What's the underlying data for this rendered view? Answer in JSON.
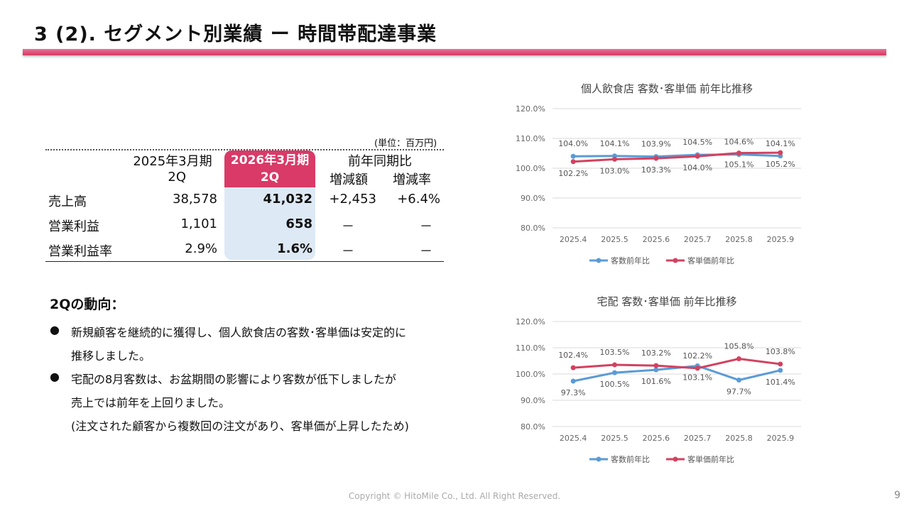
{
  "header": {
    "title": "3 (2).  セグメント別業績  ー  時間帯配達事業"
  },
  "table": {
    "unit": "(単位：百万円)",
    "col1_line1": "2025年3月期",
    "col1_line2": "2Q",
    "col2_line1": "2026年3月期",
    "col2_line2": "2Q",
    "col3_head": "前年同期比",
    "col3_sub": "増減額",
    "col4_sub": "増減率",
    "rows": [
      {
        "label": "売上高",
        "prev": "38,578",
        "curr": "41,032",
        "diff": "+2,453",
        "rate": "+6.4%"
      },
      {
        "label": "営業利益",
        "prev": "1,101",
        "curr": "658",
        "diff": "－",
        "rate": "－"
      },
      {
        "label": "営業利益率",
        "prev": "2.9%",
        "curr": "1.6%",
        "diff": "－",
        "rate": "－"
      }
    ]
  },
  "trend": {
    "title": "2Qの動向：",
    "bullet": "●",
    "b1_l1": "新規顧客を継続的に獲得し、個人飲食店の客数･客単価は安定的に",
    "b1_l2": "推移しました。",
    "b2_l1": "宅配の8月客数は、お盆期間の影響により客数が低下しましたが",
    "b2_l2": "売上では前年を上回りました。",
    "b2_l3": "(注文された顧客から複数回の注文があり、客単価が上昇したため)"
  },
  "footer": {
    "copyright": "Copyright © HitoMile Co., Ltd. All Right Reserved.",
    "page": "9"
  },
  "chart_data": [
    {
      "type": "line",
      "title": "個人飲食店  客数･客単価  前年比推移",
      "categories": [
        "2025.4",
        "2025.5",
        "2025.6",
        "2025.7",
        "2025.8",
        "2025.9"
      ],
      "ylim": [
        80,
        120
      ],
      "yticks": [
        "120.0%",
        "110.0%",
        "100.0%",
        "90.0%",
        "80.0%"
      ],
      "series": [
        {
          "name": "客数前年比",
          "color": "#5b9bd5",
          "values": [
            104.0,
            104.1,
            103.9,
            104.5,
            104.6,
            104.1
          ],
          "labels": [
            "104.0%",
            "104.1%",
            "103.9%",
            "104.5%",
            "104.6%",
            "104.1%"
          ],
          "label_pos": "above"
        },
        {
          "name": "客単価前年比",
          "color": "#d2425f",
          "values": [
            102.2,
            103.0,
            103.3,
            104.0,
            105.1,
            105.2
          ],
          "labels": [
            "102.2%",
            "103.0%",
            "103.3%",
            "104.0%",
            "105.1%",
            "105.2%"
          ],
          "label_pos": "below"
        }
      ]
    },
    {
      "type": "line",
      "title": "宅配  客数･客単価  前年比推移",
      "categories": [
        "2025.4",
        "2025.5",
        "2025.6",
        "2025.7",
        "2025.8",
        "2025.9"
      ],
      "ylim": [
        80,
        120
      ],
      "yticks": [
        "120.0%",
        "110.0%",
        "100.0%",
        "90.0%",
        "80.0%"
      ],
      "series": [
        {
          "name": "客数前年比",
          "color": "#5b9bd5",
          "values": [
            97.3,
            100.5,
            101.6,
            103.1,
            97.7,
            101.4
          ],
          "labels": [
            "97.3%",
            "100.5%",
            "101.6%",
            "103.1%",
            "97.7%",
            "101.4%"
          ],
          "label_pos": "below"
        },
        {
          "name": "客単価前年比",
          "color": "#d2425f",
          "values": [
            102.4,
            103.5,
            103.2,
            102.2,
            105.8,
            103.8
          ],
          "labels": [
            "102.4%",
            "103.5%",
            "103.2%",
            "102.2%",
            "105.8%",
            "103.8%"
          ],
          "label_pos": "above"
        }
      ]
    }
  ]
}
